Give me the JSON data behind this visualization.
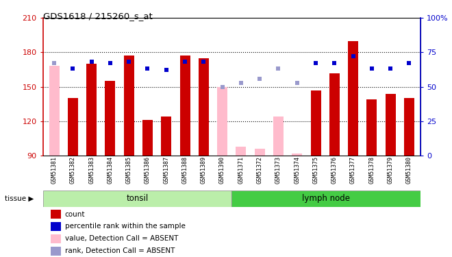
{
  "title": "GDS1618 / 215260_s_at",
  "samples": [
    "GSM51381",
    "GSM51382",
    "GSM51383",
    "GSM51384",
    "GSM51385",
    "GSM51386",
    "GSM51387",
    "GSM51388",
    "GSM51389",
    "GSM51390",
    "GSM51371",
    "GSM51372",
    "GSM51373",
    "GSM51374",
    "GSM51375",
    "GSM51376",
    "GSM51377",
    "GSM51378",
    "GSM51379",
    "GSM51380"
  ],
  "bar_values": [
    null,
    140,
    170,
    155,
    177,
    121,
    124,
    177,
    175,
    null,
    null,
    null,
    null,
    null,
    147,
    162,
    190,
    139,
    144,
    140
  ],
  "bar_absent": [
    168,
    null,
    null,
    null,
    null,
    null,
    null,
    null,
    null,
    150,
    98,
    96,
    124,
    92,
    null,
    null,
    null,
    null,
    null,
    null
  ],
  "rank_present": [
    null,
    63,
    68,
    67,
    68,
    63,
    62,
    68,
    68,
    null,
    null,
    null,
    null,
    null,
    67,
    67,
    72,
    63,
    63,
    67
  ],
  "rank_absent": [
    67,
    null,
    null,
    null,
    null,
    null,
    null,
    null,
    null,
    50,
    53,
    56,
    63,
    53,
    null,
    null,
    null,
    null,
    null,
    null
  ],
  "tonsil_count": 10,
  "lymph_count": 10,
  "ylim_left": [
    90,
    210
  ],
  "yticks_left": [
    90,
    120,
    150,
    180,
    210
  ],
  "ylim_right": [
    0,
    100
  ],
  "yticks_right": [
    0,
    25,
    50,
    75,
    100
  ],
  "yticklabels_right": [
    "0",
    "25",
    "50",
    "75",
    "100%"
  ],
  "grid_lines": [
    120,
    150,
    180
  ],
  "color_bar_present": "#cc0000",
  "color_bar_absent": "#ffbbcc",
  "color_rank_present": "#0000cc",
  "color_rank_absent": "#9999cc",
  "color_tonsil": "#bbeeaa",
  "color_lymph": "#44cc44",
  "tissue_label": "tissue",
  "tonsil_label": "tonsil",
  "lymph_label": "lymph node",
  "legend_items": [
    {
      "label": "count",
      "color": "#cc0000"
    },
    {
      "label": "percentile rank within the sample",
      "color": "#0000cc"
    },
    {
      "label": "value, Detection Call = ABSENT",
      "color": "#ffbbcc"
    },
    {
      "label": "rank, Detection Call = ABSENT",
      "color": "#9999cc"
    }
  ]
}
